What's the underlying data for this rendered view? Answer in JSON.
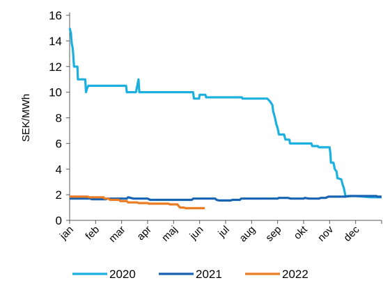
{
  "chart_data": {
    "type": "line",
    "title": "",
    "xlabel": "",
    "ylabel": "SEK/MWh",
    "ylim": [
      0,
      16
    ],
    "yticks": [
      0,
      2,
      4,
      6,
      8,
      10,
      12,
      14,
      16
    ],
    "x_unit": "month (0 = 1 jan, 12 = 31 dec)",
    "xlim": [
      0,
      12
    ],
    "month_labels": [
      "jan",
      "feb",
      "mar",
      "apr",
      "maj",
      "jun",
      "jul",
      "aug",
      "sep",
      "okt",
      "nov",
      "dec"
    ],
    "grid": false,
    "legend_position": "bottom",
    "series": [
      {
        "name": "2020",
        "color": "#1cb0e0",
        "points": [
          [
            0.0,
            15.0
          ],
          [
            0.05,
            14.6
          ],
          [
            0.08,
            13.8
          ],
          [
            0.12,
            13.4
          ],
          [
            0.14,
            12.9
          ],
          [
            0.17,
            12.0
          ],
          [
            0.3,
            12.0
          ],
          [
            0.32,
            11.0
          ],
          [
            0.6,
            11.0
          ],
          [
            0.63,
            10.0
          ],
          [
            0.67,
            10.3
          ],
          [
            0.72,
            10.5
          ],
          [
            2.17,
            10.5
          ],
          [
            2.2,
            10.0
          ],
          [
            2.55,
            10.0
          ],
          [
            2.6,
            10.5
          ],
          [
            2.65,
            11.0
          ],
          [
            2.68,
            10.0
          ],
          [
            4.75,
            10.0
          ],
          [
            4.78,
            9.5
          ],
          [
            4.98,
            9.5
          ],
          [
            5.0,
            9.8
          ],
          [
            5.22,
            9.8
          ],
          [
            5.25,
            9.6
          ],
          [
            6.63,
            9.6
          ],
          [
            6.65,
            9.5
          ],
          [
            7.6,
            9.5
          ],
          [
            7.7,
            9.3
          ],
          [
            7.8,
            9.0
          ],
          [
            7.83,
            8.5
          ],
          [
            7.9,
            8.0
          ],
          [
            7.95,
            7.5
          ],
          [
            8.0,
            7.2
          ],
          [
            8.05,
            6.7
          ],
          [
            8.25,
            6.7
          ],
          [
            8.3,
            6.3
          ],
          [
            8.45,
            6.3
          ],
          [
            8.48,
            6.0
          ],
          [
            9.3,
            6.0
          ],
          [
            9.33,
            5.8
          ],
          [
            9.55,
            5.8
          ],
          [
            9.58,
            5.7
          ],
          [
            10.0,
            5.7
          ],
          [
            10.03,
            5.2
          ],
          [
            10.05,
            4.5
          ],
          [
            10.15,
            4.5
          ],
          [
            10.2,
            4.0
          ],
          [
            10.27,
            3.8
          ],
          [
            10.3,
            3.3
          ],
          [
            10.45,
            3.2
          ],
          [
            10.5,
            2.8
          ],
          [
            10.55,
            2.5
          ],
          [
            10.6,
            2.0
          ],
          [
            10.62,
            1.85
          ],
          [
            10.7,
            1.9
          ],
          [
            11.0,
            1.9
          ],
          [
            11.6,
            1.8
          ],
          [
            12.0,
            1.8
          ]
        ]
      },
      {
        "name": "2021",
        "color": "#1864b4",
        "points": [
          [
            0.0,
            1.7
          ],
          [
            0.8,
            1.7
          ],
          [
            0.85,
            1.65
          ],
          [
            1.4,
            1.65
          ],
          [
            1.45,
            1.7
          ],
          [
            2.2,
            1.7
          ],
          [
            2.25,
            1.8
          ],
          [
            2.45,
            1.7
          ],
          [
            3.0,
            1.7
          ],
          [
            3.1,
            1.6
          ],
          [
            4.7,
            1.6
          ],
          [
            4.75,
            1.7
          ],
          [
            5.6,
            1.7
          ],
          [
            5.65,
            1.6
          ],
          [
            5.75,
            1.55
          ],
          [
            6.2,
            1.55
          ],
          [
            6.25,
            1.6
          ],
          [
            6.55,
            1.6
          ],
          [
            6.6,
            1.7
          ],
          [
            8.0,
            1.7
          ],
          [
            8.05,
            1.75
          ],
          [
            8.4,
            1.75
          ],
          [
            8.5,
            1.7
          ],
          [
            9.0,
            1.7
          ],
          [
            9.05,
            1.75
          ],
          [
            9.2,
            1.7
          ],
          [
            9.6,
            1.7
          ],
          [
            9.65,
            1.75
          ],
          [
            9.85,
            1.75
          ],
          [
            9.95,
            1.85
          ],
          [
            10.4,
            1.85
          ],
          [
            10.6,
            1.85
          ],
          [
            10.8,
            1.9
          ],
          [
            11.8,
            1.9
          ],
          [
            11.85,
            1.85
          ],
          [
            12.0,
            1.85
          ]
        ]
      },
      {
        "name": "2022",
        "color": "#ea7c24",
        "points": [
          [
            0.0,
            1.85
          ],
          [
            0.7,
            1.85
          ],
          [
            0.75,
            1.8
          ],
          [
            1.3,
            1.8
          ],
          [
            1.35,
            1.7
          ],
          [
            1.5,
            1.7
          ],
          [
            1.55,
            1.6
          ],
          [
            1.9,
            1.6
          ],
          [
            1.95,
            1.5
          ],
          [
            2.2,
            1.5
          ],
          [
            2.25,
            1.4
          ],
          [
            2.6,
            1.4
          ],
          [
            2.65,
            1.35
          ],
          [
            3.0,
            1.35
          ],
          [
            3.05,
            1.3
          ],
          [
            3.8,
            1.3
          ],
          [
            3.85,
            1.25
          ],
          [
            4.15,
            1.25
          ],
          [
            4.2,
            1.1
          ],
          [
            4.25,
            1.0
          ],
          [
            4.4,
            1.0
          ],
          [
            4.45,
            0.95
          ],
          [
            5.2,
            0.95
          ]
        ]
      }
    ]
  }
}
